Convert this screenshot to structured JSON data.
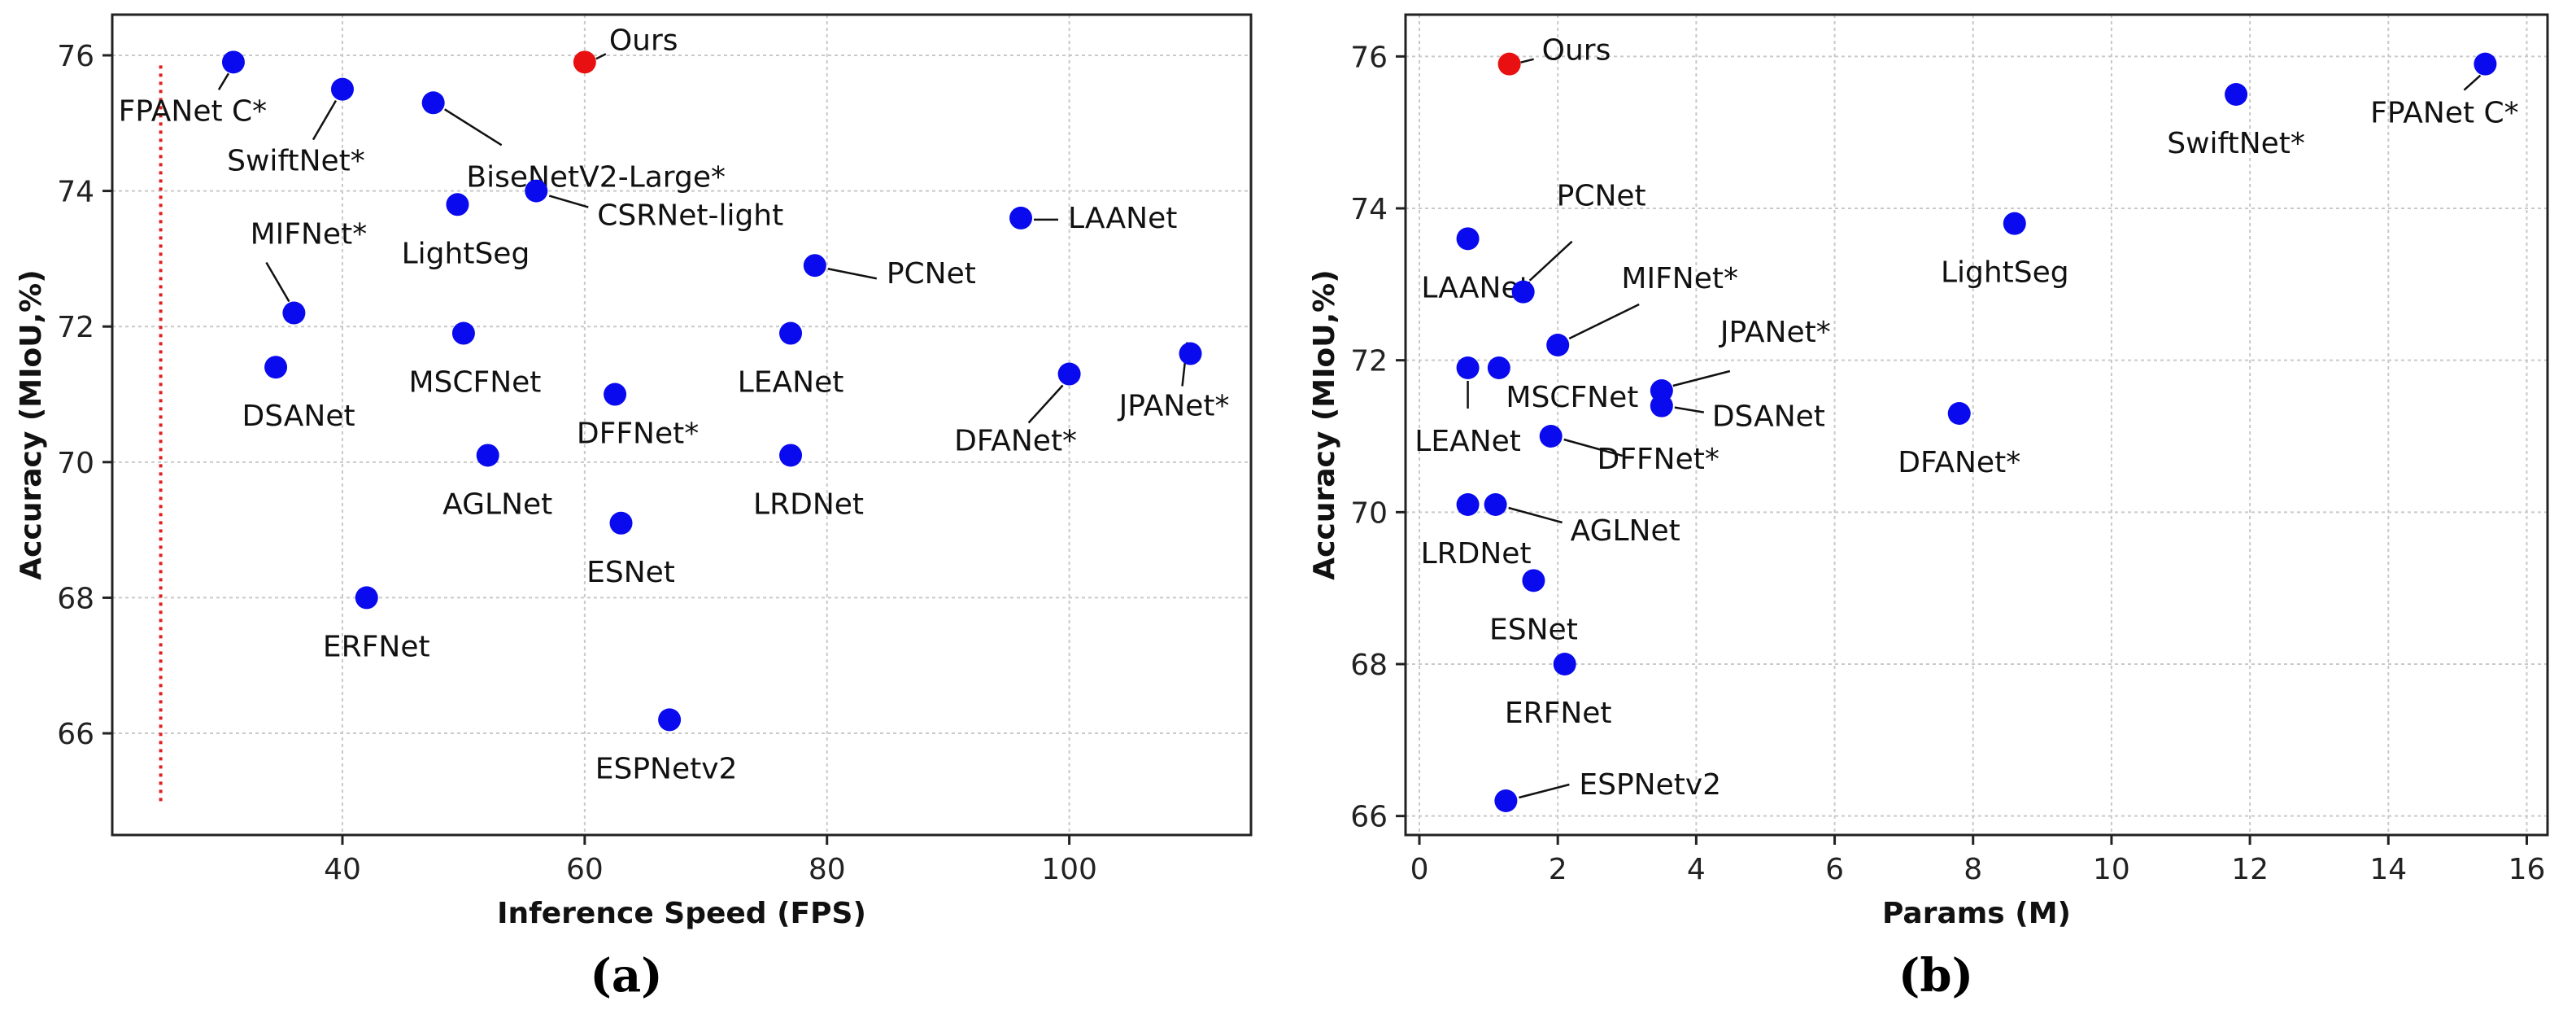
{
  "chart_data": [
    {
      "type": "scatter",
      "panel": "(a)",
      "xlabel": "Inference Speed (FPS)",
      "ylabel": "Accuracy (MIoU,%)",
      "xlim": [
        21,
        115
      ],
      "ylim": [
        64.5,
        76.6
      ],
      "xticks": [
        40,
        60,
        80,
        100
      ],
      "yticks": [
        66,
        68,
        70,
        72,
        74,
        76
      ],
      "grid": true,
      "reference_line": {
        "x": 25,
        "y_range": [
          65.0,
          75.9
        ],
        "color": "#e02020",
        "style": "dotted"
      },
      "points": [
        {
          "label": "Ours",
          "x": 60,
          "y": 75.9,
          "color": "#e81010"
        },
        {
          "label": "FPANet C*",
          "x": 31,
          "y": 75.9,
          "color": "#0a0aee"
        },
        {
          "label": "SwiftNet*",
          "x": 40,
          "y": 75.5,
          "color": "#0a0aee"
        },
        {
          "label": "BiseNetV2-Large*",
          "x": 47.5,
          "y": 75.3,
          "color": "#0a0aee"
        },
        {
          "label": "CSRNet-light",
          "x": 56,
          "y": 74.0,
          "color": "#0a0aee"
        },
        {
          "label": "LightSeg",
          "x": 49.5,
          "y": 73.8,
          "color": "#0a0aee"
        },
        {
          "label": "LAANet",
          "x": 96,
          "y": 73.6,
          "color": "#0a0aee"
        },
        {
          "label": "PCNet",
          "x": 79,
          "y": 72.9,
          "color": "#0a0aee"
        },
        {
          "label": "MIFNet*",
          "x": 36,
          "y": 72.2,
          "color": "#0a0aee"
        },
        {
          "label": "MSCFNet",
          "x": 50,
          "y": 71.9,
          "color": "#0a0aee"
        },
        {
          "label": "LEANet",
          "x": 77,
          "y": 71.9,
          "color": "#0a0aee"
        },
        {
          "label": "JPANet*",
          "x": 110,
          "y": 71.6,
          "color": "#0a0aee"
        },
        {
          "label": "DSANet",
          "x": 34.5,
          "y": 71.4,
          "color": "#0a0aee"
        },
        {
          "label": "DFANet*",
          "x": 100,
          "y": 71.3,
          "color": "#0a0aee"
        },
        {
          "label": "DFFNet*",
          "x": 62.5,
          "y": 71.0,
          "color": "#0a0aee"
        },
        {
          "label": "AGLNet",
          "x": 52,
          "y": 70.1,
          "color": "#0a0aee"
        },
        {
          "label": "LRDNet",
          "x": 77,
          "y": 70.1,
          "color": "#0a0aee"
        },
        {
          "label": "ESNet",
          "x": 63,
          "y": 69.1,
          "color": "#0a0aee"
        },
        {
          "label": "ERFNet",
          "x": 42,
          "y": 68.0,
          "color": "#0a0aee"
        },
        {
          "label": "ESPNetv2",
          "x": 67,
          "y": 66.2,
          "color": "#0a0aee"
        }
      ]
    },
    {
      "type": "scatter",
      "panel": "(b)",
      "xlabel": "Params (M)",
      "ylabel": "Accuracy (MIoU,%)",
      "xlim": [
        -0.2,
        16.3
      ],
      "ylim": [
        65.75,
        76.55
      ],
      "xticks": [
        0,
        2,
        4,
        6,
        8,
        10,
        12,
        14,
        16
      ],
      "yticks": [
        66,
        68,
        70,
        72,
        74,
        76
      ],
      "grid": true,
      "points": [
        {
          "label": "Ours",
          "x": 1.3,
          "y": 75.9,
          "color": "#e81010"
        },
        {
          "label": "FPANet C*",
          "x": 15.4,
          "y": 75.9,
          "color": "#0a0aee"
        },
        {
          "label": "SwiftNet*",
          "x": 11.8,
          "y": 75.5,
          "color": "#0a0aee"
        },
        {
          "label": "LightSeg",
          "x": 8.6,
          "y": 73.8,
          "color": "#0a0aee"
        },
        {
          "label": "LAANet",
          "x": 0.7,
          "y": 73.6,
          "color": "#0a0aee"
        },
        {
          "label": "PCNet",
          "x": 1.5,
          "y": 72.9,
          "color": "#0a0aee"
        },
        {
          "label": "MIFNet*",
          "x": 2.0,
          "y": 72.2,
          "color": "#0a0aee"
        },
        {
          "label": "LEANet",
          "x": 0.7,
          "y": 71.9,
          "color": "#0a0aee"
        },
        {
          "label": "MSCFNet",
          "x": 1.15,
          "y": 71.9,
          "color": "#0a0aee"
        },
        {
          "label": "JPANet*",
          "x": 3.5,
          "y": 71.6,
          "color": "#0a0aee"
        },
        {
          "label": "DSANet",
          "x": 3.5,
          "y": 71.4,
          "color": "#0a0aee"
        },
        {
          "label": "DFANet*",
          "x": 7.8,
          "y": 71.3,
          "color": "#0a0aee"
        },
        {
          "label": "DFFNet*",
          "x": 1.9,
          "y": 71.0,
          "color": "#0a0aee"
        },
        {
          "label": "LRDNet",
          "x": 0.7,
          "y": 70.1,
          "color": "#0a0aee"
        },
        {
          "label": "AGLNet",
          "x": 1.1,
          "y": 70.1,
          "color": "#0a0aee"
        },
        {
          "label": "ESNet",
          "x": 1.65,
          "y": 69.1,
          "color": "#0a0aee"
        },
        {
          "label": "ERFNet",
          "x": 2.1,
          "y": 68.0,
          "color": "#0a0aee"
        },
        {
          "label": "ESPNetv2",
          "x": 1.25,
          "y": 66.2,
          "color": "#0a0aee"
        }
      ]
    }
  ]
}
